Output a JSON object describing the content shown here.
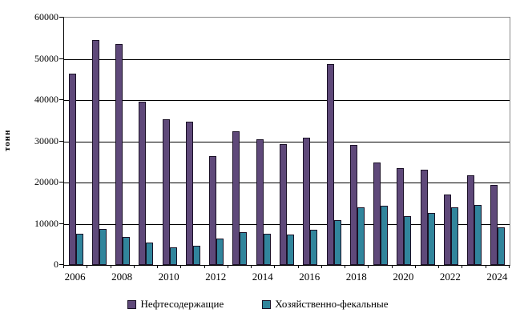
{
  "chart_data": {
    "type": "bar",
    "title": "",
    "ylabel": "тонн",
    "categories": [
      2006,
      2007,
      2008,
      2009,
      2010,
      2011,
      2012,
      2013,
      2014,
      2015,
      2016,
      2017,
      2018,
      2019,
      2020,
      2021,
      2022,
      2023,
      2024
    ],
    "x_tick_labels": [
      "2006",
      "2008",
      "2010",
      "2012",
      "2014",
      "2016",
      "2018",
      "2020",
      "2022",
      "2024"
    ],
    "series": [
      {
        "name": "Нефтесодержащие",
        "color": "#5F497A",
        "values": [
          46500,
          54500,
          53600,
          39600,
          35400,
          34700,
          26400,
          32500,
          30500,
          29300,
          30900,
          48700,
          29100,
          24800,
          23400,
          23100,
          17100,
          21700,
          19400
        ]
      },
      {
        "name": "Хозяйственно-фекальные",
        "color": "#31859C",
        "values": [
          7600,
          8700,
          6800,
          5500,
          4200,
          4600,
          6400,
          8000,
          7500,
          7300,
          8600,
          10800,
          13900,
          14400,
          11900,
          12600,
          14000,
          14600,
          9100
        ]
      }
    ],
    "ylim": [
      0,
      60000
    ],
    "ytick_step": 10000,
    "ytick_labels": [
      "0",
      "10000",
      "20000",
      "30000",
      "40000",
      "50000",
      "60000"
    ],
    "grid": "horizontal",
    "legend_position": "bottom",
    "plot_frame_color": "#888888",
    "axis_color": "#000000"
  }
}
